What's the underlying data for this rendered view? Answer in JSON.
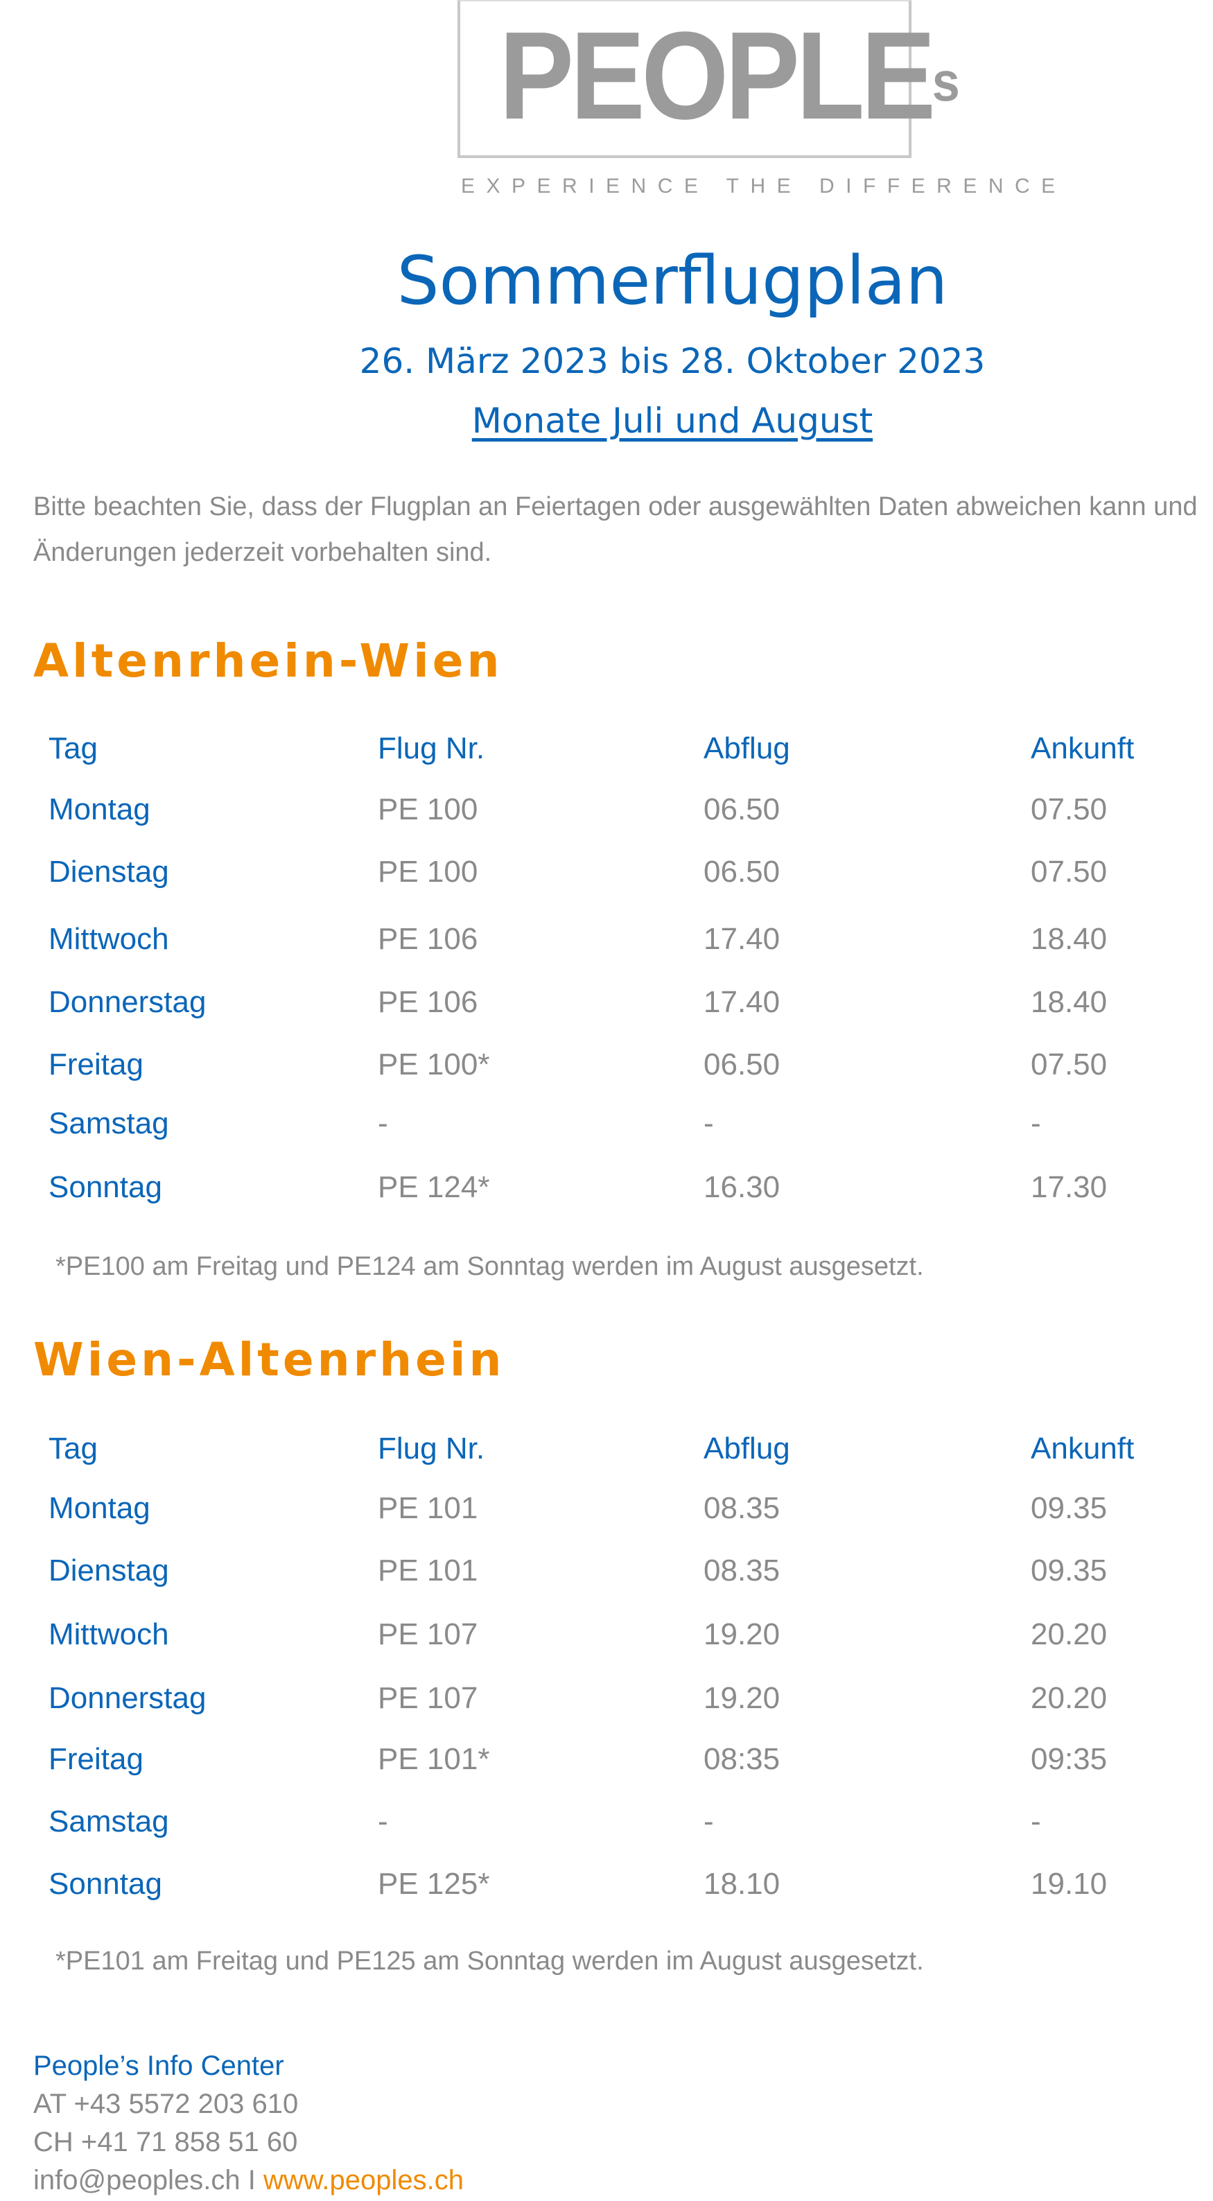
{
  "logo": {
    "text": "PEOPLE",
    "superscript": "s",
    "tagline": "EXPERIENCE THE DIFFERENCE"
  },
  "header": {
    "title": "Sommerflugplan",
    "dates": "26. März 2023 bis 28. Oktober 2023",
    "months_link": "Monate Juli und August"
  },
  "notice": {
    "line1": "Bitte beachten Sie, dass der Flugplan an Feiertagen oder ausgewählten Daten abweichen kann und",
    "line2": "Änderungen jederzeit vorbehalten sind."
  },
  "columns": [
    "Tag",
    "Flug Nr.",
    "Abflug",
    "Ankunft"
  ],
  "sections": [
    {
      "heading": "Altenrhein-Wien",
      "rows": [
        [
          "Montag",
          "PE 100",
          "06.50",
          "07.50"
        ],
        [
          "Dienstag",
          "PE 100",
          "06.50",
          "07.50"
        ],
        [
          "Mittwoch",
          "PE 106",
          "17.40",
          "18.40"
        ],
        [
          "Donnerstag",
          "PE 106",
          "17.40",
          "18.40"
        ],
        [
          "Freitag",
          "PE 100*",
          "06.50",
          "07.50"
        ],
        [
          "Samstag",
          "-",
          "-",
          "-"
        ],
        [
          "Sonntag",
          "PE 124*",
          "16.30",
          "17.30"
        ]
      ],
      "note": "*PE100 am Freitag und PE124 am Sonntag werden im August ausgesetzt."
    },
    {
      "heading": "Wien-Altenrhein",
      "rows": [
        [
          "Montag",
          "PE 101",
          "08.35",
          "09.35"
        ],
        [
          "Dienstag",
          "PE 101",
          "08.35",
          "09.35"
        ],
        [
          "Mittwoch",
          "PE 107",
          "19.20",
          "20.20"
        ],
        [
          "Donnerstag",
          "PE 107",
          "19.20",
          "20.20"
        ],
        [
          "Freitag",
          "PE 101*",
          "08:35",
          "09:35"
        ],
        [
          "Samstag",
          "-",
          "-",
          "-"
        ],
        [
          "Sonntag",
          "PE 125*",
          "18.10",
          "19.10"
        ]
      ],
      "note": "*PE101 am Freitag und PE125 am Sonntag werden im August ausgesetzt."
    }
  ],
  "footer": {
    "title": "People’s Info Center",
    "phone_at": "AT +43 5572 203 610",
    "phone_ch": "CH +41 71 858 51 60",
    "email": "info@peoples.ch",
    "separator": "I",
    "website": "www.peoples.ch"
  },
  "colors": {
    "blue": "#0b66b8",
    "orange": "#f08a00",
    "gray": "#8a8a8a"
  }
}
